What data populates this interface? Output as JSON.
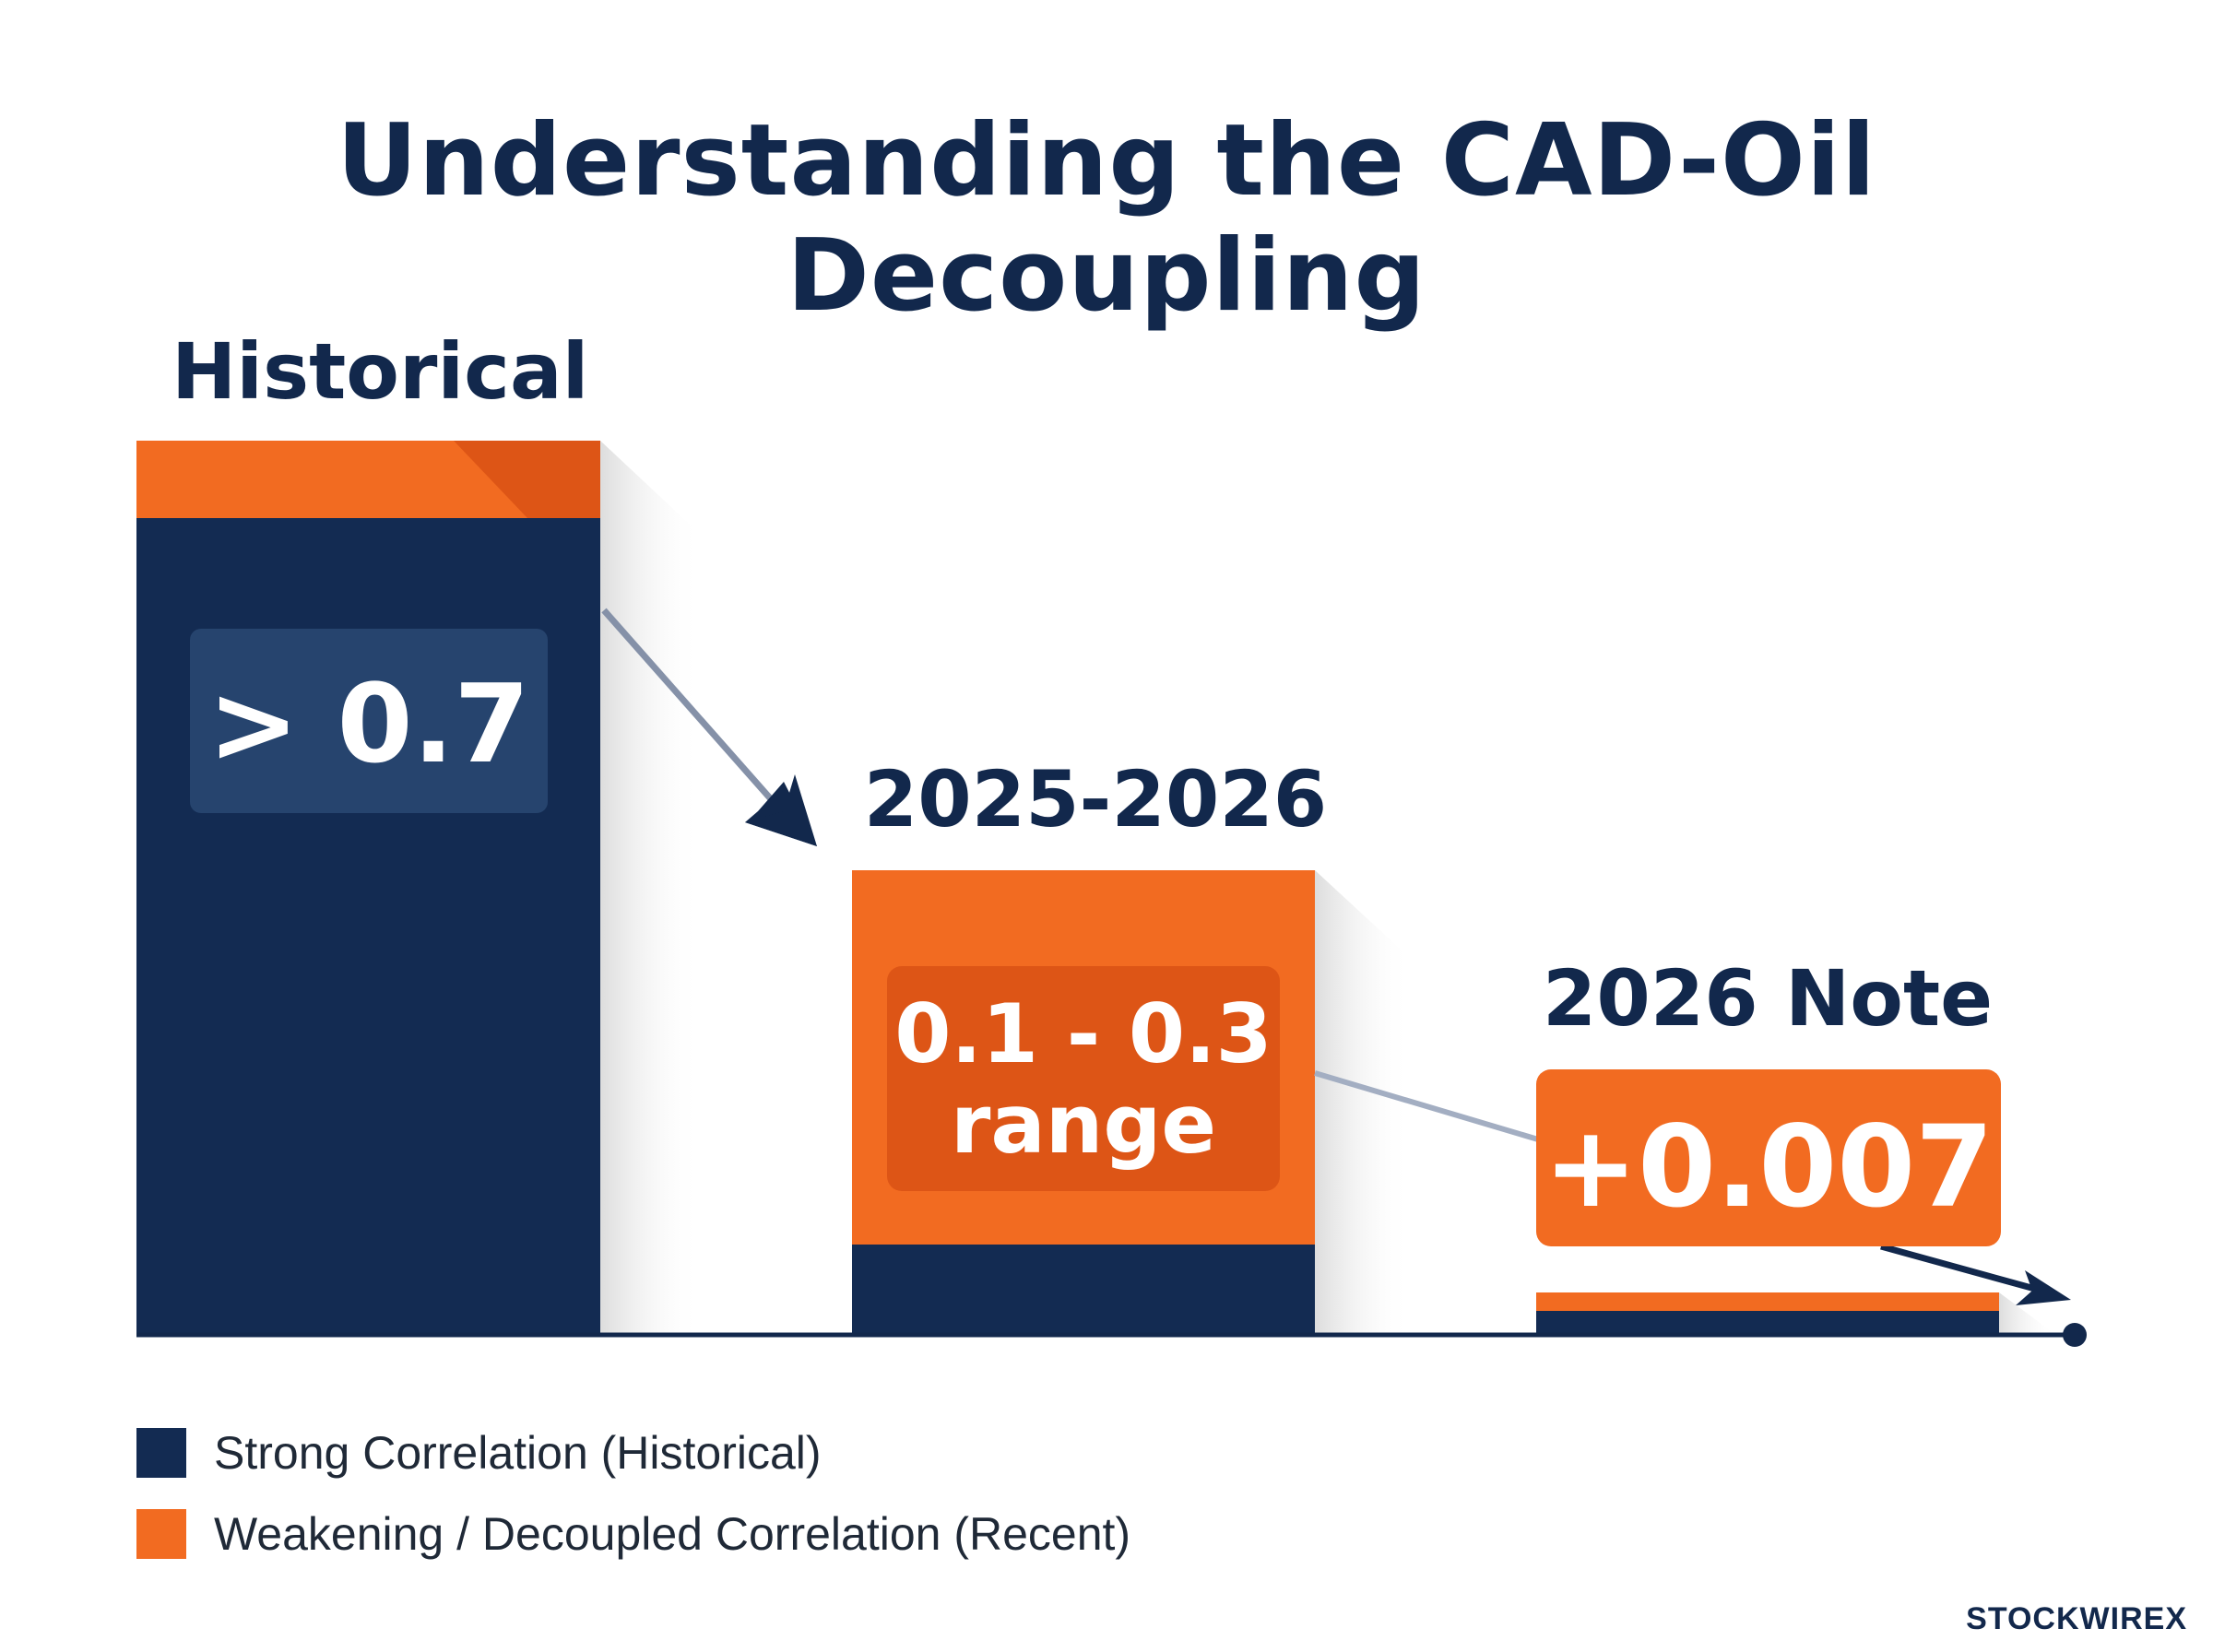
{
  "title": "Understanding the CAD-Oil Decoupling",
  "colors": {
    "strong": "#132b52",
    "weak": "#f26b21",
    "weak_dark": "#dd5516",
    "strong_box": "#26446e",
    "axis": "#12284c"
  },
  "chart_data": {
    "type": "bar",
    "title": "Understanding the CAD-Oil Decoupling",
    "categories": [
      "Historical",
      "2025-2026",
      "2026 Note"
    ],
    "value_labels": [
      "> 0.7",
      "0.1 - 0.3\nrange",
      "+0.007"
    ],
    "values": [
      0.7,
      0.3,
      0.007
    ],
    "series": [
      {
        "name": "Strong Correlation (Historical)",
        "color": "#132b52"
      },
      {
        "name": "Weakening / Decoupled Correlation (Recent)",
        "color": "#f26b21"
      }
    ],
    "legend": "bottom-left",
    "grid": false
  },
  "legend": {
    "items": [
      {
        "label": "Strong Correlation (Historical)",
        "color": "#132b52"
      },
      {
        "label": "Weakening / Decoupled Correlation (Recent)",
        "color": "#f26b21"
      }
    ]
  },
  "brand": {
    "text": "STOCKWIRE",
    "mark": "X"
  }
}
